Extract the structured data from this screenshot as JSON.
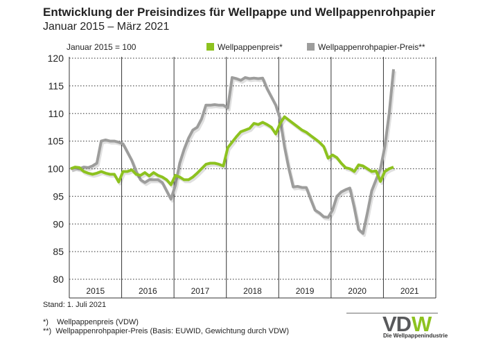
{
  "title": "Entwicklung der Preisindizes für Wellpappe und Wellpappenrohpapier",
  "subtitle": "Januar 2015 – März 2021",
  "base_note": "Januar 2015 = 100",
  "stand": "Stand: 1. Juli 2021",
  "footnotes": [
    "*)    Wellpappenpreis (VDW)",
    "**)  Wellpappenrohpapier-Preis (Basis: EUWID, Gewichtung durch VDW)"
  ],
  "logo": {
    "text": "VDW",
    "subtitle": "Die Wellpappenindustrie",
    "colors": [
      "#58595b",
      "#8dc21f"
    ]
  },
  "chart_data": {
    "type": "line",
    "title": "Entwicklung der Preisindizes für Wellpappe und Wellpappenrohpapier",
    "subtitle": "Januar 2015 – März 2021",
    "x_start": "2015-01",
    "x_end": "2021-03",
    "x_step": "month",
    "x_tick_labels": [
      "2015",
      "2016",
      "2017",
      "2018",
      "2019",
      "2020",
      "2021"
    ],
    "ylim": [
      80,
      120
    ],
    "y_ticks": [
      80,
      85,
      90,
      95,
      100,
      105,
      110,
      115,
      120
    ],
    "grid": {
      "horizontal": "dotted",
      "vertical_year_lines": true
    },
    "legend_position": "top",
    "series": [
      {
        "name": "Wellpappenpreis*",
        "color": "#8dc21f",
        "values": [
          100,
          100.3,
          100.2,
          99.5,
          99.2,
          99,
          99.2,
          99.5,
          99.2,
          99,
          99,
          97.6,
          99.5,
          99.5,
          99.8,
          99,
          98.8,
          99.3,
          98.7,
          99.3,
          98.8,
          98.5,
          98,
          97.1,
          98.8,
          98.5,
          98,
          98,
          98.5,
          99.2,
          100,
          100.8,
          101,
          101,
          100.8,
          100.5,
          103.8,
          104.8,
          105.8,
          106.7,
          107,
          107.3,
          108.2,
          108,
          108.4,
          108,
          107.5,
          106.3,
          108.2,
          109.4,
          108.8,
          108.2,
          107.6,
          107,
          106.6,
          106,
          105.4,
          104.8,
          104,
          101.9,
          102.5,
          102,
          101,
          100.2,
          100,
          99.5,
          100.7,
          100.5,
          100,
          99.5,
          99.6,
          97.7,
          99.5,
          100,
          100.3
        ]
      },
      {
        "name": "Wellpappenrohpapier-Preis**",
        "color": "#9d9d9c",
        "values": [
          100,
          100.2,
          100,
          100.3,
          100.2,
          100.5,
          101,
          105,
          105.2,
          105,
          105,
          104.8,
          104.5,
          103,
          101.5,
          99.5,
          98,
          97.5,
          98,
          98,
          98,
          97.5,
          96,
          94.5,
          97,
          101,
          103.5,
          105.5,
          107,
          107.5,
          109,
          111.5,
          111.5,
          111.6,
          111.5,
          111.5,
          111,
          116.5,
          116.3,
          116,
          116.5,
          116.3,
          116.4,
          116.3,
          116.4,
          114.5,
          113,
          111.5,
          109,
          104,
          100,
          96.7,
          96.8,
          96.6,
          96.6,
          94.5,
          92.5,
          92,
          91.3,
          91.2,
          92.5,
          95,
          95.8,
          96.2,
          96.5,
          93,
          89,
          88.3,
          92,
          96,
          98,
          100,
          104,
          110,
          118
        ]
      }
    ]
  }
}
